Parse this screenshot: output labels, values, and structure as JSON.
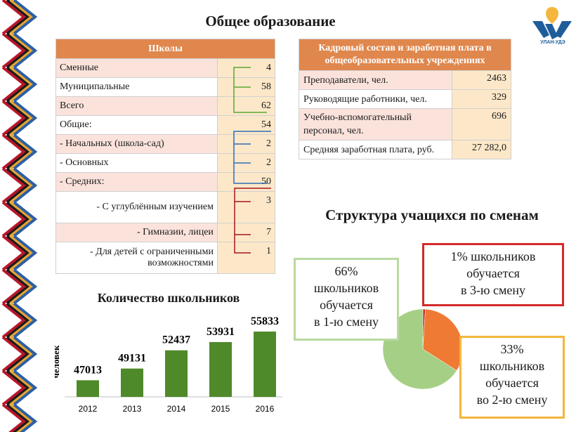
{
  "page_title": "Общее образование",
  "logo": {
    "text": "УЛАН-УДЭ",
    "colors": {
      "blue": "#1f5d9a",
      "yellow": "#f4b63c"
    }
  },
  "schools_table": {
    "header": "Школы",
    "rows": [
      {
        "label": "Сменные",
        "value": "4",
        "align": "left"
      },
      {
        "label": "Муниципальные",
        "value": "58",
        "align": "left"
      },
      {
        "label": "Всего",
        "value": "62",
        "align": "left"
      },
      {
        "label": "Общие:",
        "value": "54",
        "align": "left"
      },
      {
        "label": "- Начальных (школа-сад)",
        "value": "2",
        "align": "left"
      },
      {
        "label": "- Основных",
        "value": "2",
        "align": "left"
      },
      {
        "label": "- Средних:",
        "value": "50",
        "align": "left"
      },
      {
        "label": "- С углублённым изучением",
        "value": "3",
        "align": "right"
      },
      {
        "label": "- Гимназии, лицеи",
        "value": "7",
        "align": "right"
      },
      {
        "label": "- Для детей с ограниченными возможностями",
        "value": "1",
        "align": "right"
      }
    ]
  },
  "staff_table": {
    "header": "Кадровый состав и заработная плата в общеобразовательных учреждениях",
    "rows": [
      {
        "label": "Преподаватели, чел.",
        "value": "2463"
      },
      {
        "label": "Руководящие работники, чел.",
        "value": "329"
      },
      {
        "label": "Учебно-вспомогательный персонал, чел.",
        "value": "696"
      },
      {
        "label": "Средняя заработная плата, руб.",
        "value": "27 282,0"
      }
    ]
  },
  "bracket_colors": {
    "green": "#5aa832",
    "blue": "#2f6eb5",
    "red": "#a8141b"
  },
  "chart_data": [
    {
      "type": "bar",
      "title": "Количество школьников",
      "ylabel": "человек",
      "xlabel": "",
      "categories": [
        "2012",
        "2013",
        "2014",
        "2015",
        "2016"
      ],
      "values": [
        47013,
        49131,
        52437,
        53931,
        55833
      ],
      "data_labels": [
        "47013",
        "49131",
        "52437",
        "53931",
        "55833"
      ],
      "ylim": [
        44000,
        57000
      ],
      "color": "#4f8a2a",
      "grid": false
    },
    {
      "type": "pie",
      "title": "Структура учащихся по сменам",
      "slices": [
        {
          "label": "66% школьников обучается в 1-ю смену",
          "value": 66,
          "color": "#a6cf86"
        },
        {
          "label": "33% школьников обучается во 2-ю смену",
          "value": 33,
          "color": "#ef7a34"
        },
        {
          "label": "1% школьников обучается в 3-ю смену",
          "value": 1,
          "color": "#d42a2a"
        }
      ],
      "callouts": [
        {
          "lines": [
            "66%",
            "школьников",
            "обучается",
            "в 1-ю смену"
          ],
          "border": "#b8d9a0"
        },
        {
          "lines": [
            "1% школьников",
            "обучается",
            "в 3-ю смену"
          ],
          "border": "#d42a2a"
        },
        {
          "lines": [
            "33%",
            "школьников",
            "обучается",
            "во 2-ю смену"
          ],
          "border": "#f4b63c"
        }
      ]
    }
  ]
}
